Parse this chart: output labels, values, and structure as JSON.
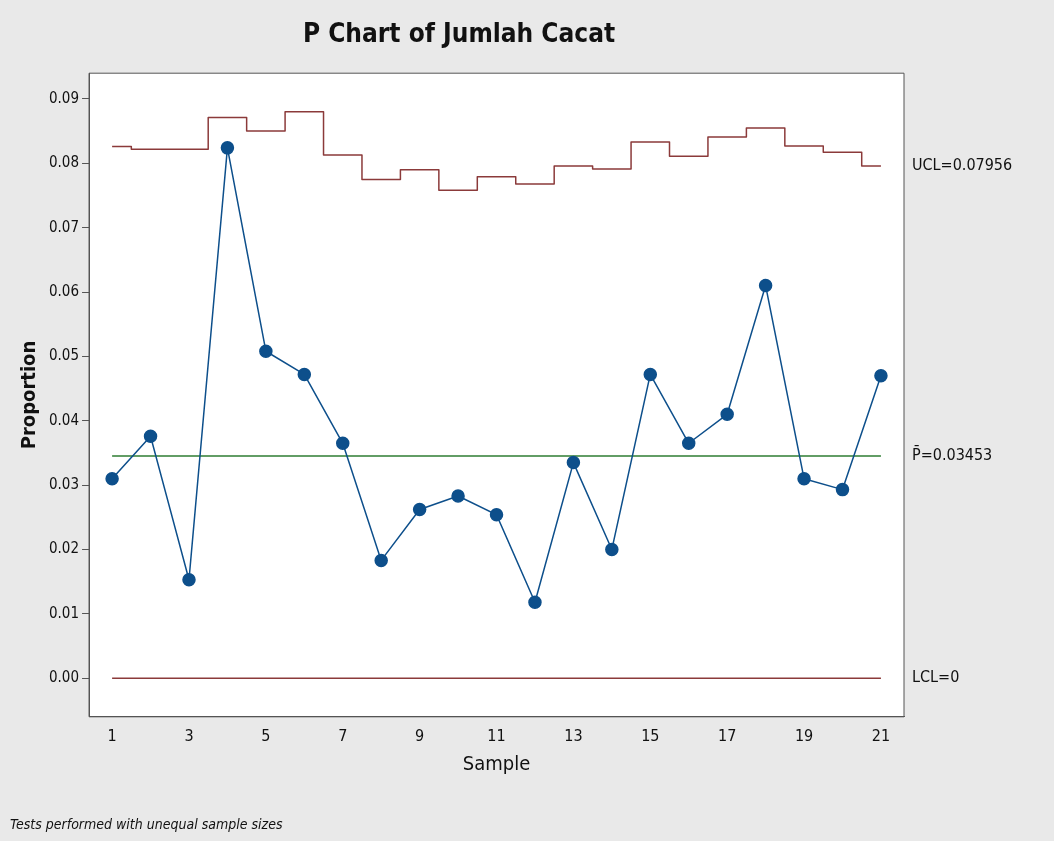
{
  "chart_data": {
    "type": "line",
    "title": "P Chart of Jumlah Cacat",
    "xlabel": "Sample",
    "ylabel": "Proportion",
    "x": [
      1,
      2,
      3,
      4,
      5,
      6,
      7,
      8,
      9,
      10,
      11,
      12,
      13,
      14,
      15,
      16,
      17,
      18,
      19,
      20,
      21
    ],
    "series": [
      {
        "marker": "circle",
        "color": "#0d4f8b",
        "values": [
          0.031,
          0.0376,
          0.0153,
          0.0824,
          0.0508,
          0.0472,
          0.0365,
          0.0183,
          0.0262,
          0.0283,
          0.0254,
          0.0118,
          0.0335,
          0.02,
          0.0472,
          0.0365,
          0.041,
          0.061,
          0.031,
          0.0293,
          0.047
        ]
      },
      {
        "type": "step",
        "marker": "none",
        "name": "UCL=0.07956",
        "color": "#8b3a3a",
        "values": [
          0.0826,
          0.0822,
          0.0822,
          0.0871,
          0.085,
          0.088,
          0.0813,
          0.0775,
          0.079,
          0.0758,
          0.0779,
          0.0768,
          0.0796,
          0.0791,
          0.0833,
          0.0811,
          0.0841,
          0.0855,
          0.0827,
          0.0817,
          0.0796
        ]
      }
    ],
    "ref_lines": [
      {
        "axis": "y",
        "value": 0.03453,
        "label": "P̄=0.03453",
        "color": "#2e7d32"
      },
      {
        "axis": "y",
        "value": 0,
        "label": "LCL=0",
        "color": "#8b3a3a"
      }
    ],
    "xlim": [
      0.4,
      21.6
    ],
    "xticks": [
      1,
      3,
      5,
      7,
      9,
      11,
      13,
      15,
      17,
      19,
      21
    ],
    "ylim": [
      -0.006,
      0.094
    ],
    "yticks": [
      {
        "value": 0,
        "label": "0.00"
      },
      {
        "value": 0.01,
        "label": "0.01"
      },
      {
        "value": 0.02,
        "label": "0.02"
      },
      {
        "value": 0.03,
        "label": "0.03"
      },
      {
        "value": 0.04,
        "label": "0.04"
      },
      {
        "value": 0.05,
        "label": "0.05"
      },
      {
        "value": 0.06,
        "label": "0.06"
      },
      {
        "value": 0.07,
        "label": "0.07"
      },
      {
        "value": 0.08,
        "label": "0.08"
      },
      {
        "value": 0.09,
        "label": "0.09"
      }
    ],
    "annotations": [
      "Tests performed with unequal sample sizes"
    ],
    "legend": false,
    "grid": false
  }
}
